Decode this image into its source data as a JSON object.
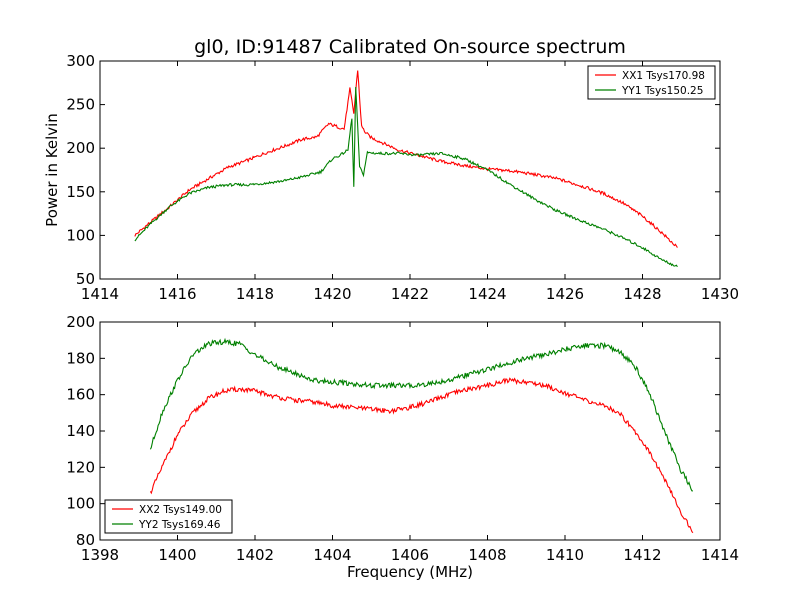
{
  "chart_data": [
    {
      "type": "line",
      "title": "gl0, ID:91487 Calibrated On-source spectrum",
      "xlabel": "",
      "ylabel": "Power in Kelvin",
      "xlim": [
        1414,
        1430
      ],
      "ylim": [
        50,
        300
      ],
      "xticks": [
        1414,
        1416,
        1418,
        1420,
        1422,
        1424,
        1426,
        1428,
        1430
      ],
      "yticks": [
        50,
        100,
        150,
        200,
        250,
        300
      ],
      "legend": "top-right",
      "series": [
        {
          "name": "XX1 Tsys170.98",
          "color": "#ff0000",
          "x": [
            1414.9,
            1415.3,
            1415.8,
            1416.3,
            1416.8,
            1417.3,
            1417.8,
            1418.3,
            1418.8,
            1419.2,
            1419.6,
            1419.9,
            1420.1,
            1420.3,
            1420.45,
            1420.55,
            1420.65,
            1420.75,
            1420.85,
            1421.0,
            1421.3,
            1421.7,
            1422.2,
            1422.8,
            1423.4,
            1424.0,
            1424.6,
            1425.2,
            1425.8,
            1426.4,
            1427.0,
            1427.5,
            1428.0,
            1428.5,
            1428.9
          ],
          "y": [
            100,
            115,
            133,
            152,
            165,
            178,
            186,
            195,
            203,
            210,
            213,
            228,
            225,
            222,
            268,
            240,
            290,
            225,
            218,
            212,
            206,
            198,
            192,
            185,
            180,
            176,
            174,
            170,
            165,
            157,
            148,
            137,
            122,
            103,
            86
          ]
        },
        {
          "name": "YY1 Tsys150.25",
          "color": "#008000",
          "x": [
            1414.9,
            1415.3,
            1415.8,
            1416.3,
            1416.8,
            1417.3,
            1417.8,
            1418.3,
            1418.8,
            1419.3,
            1419.7,
            1420.0,
            1420.2,
            1420.4,
            1420.5,
            1420.55,
            1420.6,
            1420.7,
            1420.8,
            1420.9,
            1421.2,
            1421.7,
            1422.2,
            1422.8,
            1423.4,
            1424.0,
            1424.6,
            1425.2,
            1425.8,
            1426.4,
            1427.0,
            1427.5,
            1428.0,
            1428.5,
            1428.9
          ],
          "y": [
            95,
            113,
            133,
            148,
            155,
            158,
            158,
            160,
            163,
            168,
            173,
            188,
            192,
            198,
            235,
            155,
            270,
            178,
            170,
            195,
            194,
            194,
            192,
            194,
            188,
            175,
            158,
            142,
            128,
            117,
            107,
            97,
            86,
            72,
            64
          ]
        }
      ]
    },
    {
      "type": "line",
      "title": "",
      "xlabel": "Frequency (MHz)",
      "ylabel": "",
      "xlim": [
        1398,
        1414
      ],
      "ylim": [
        80,
        200
      ],
      "xticks": [
        1398,
        1400,
        1402,
        1404,
        1406,
        1408,
        1410,
        1412,
        1414
      ],
      "yticks": [
        80,
        100,
        120,
        140,
        160,
        180,
        200
      ],
      "legend": "bottom-left",
      "series": [
        {
          "name": "XX2 Tsys149.00",
          "color": "#ff0000",
          "x": [
            1399.3,
            1399.6,
            1400.0,
            1400.4,
            1400.8,
            1401.2,
            1401.6,
            1402.0,
            1402.5,
            1403.0,
            1403.5,
            1404.0,
            1404.5,
            1405.0,
            1405.5,
            1406.0,
            1406.5,
            1407.0,
            1407.5,
            1408.0,
            1408.5,
            1409.0,
            1409.5,
            1410.0,
            1410.5,
            1411.0,
            1411.4,
            1411.8,
            1412.2,
            1412.6,
            1413.0,
            1413.3
          ],
          "y": [
            106,
            120,
            138,
            150,
            158,
            162,
            163,
            162,
            159,
            157,
            156,
            154,
            153,
            152,
            151,
            153,
            156,
            160,
            163,
            165,
            168,
            167,
            165,
            161,
            157,
            154,
            150,
            140,
            128,
            112,
            95,
            84
          ]
        },
        {
          "name": "YY2 Tsys169.46",
          "color": "#008000",
          "x": [
            1399.3,
            1399.6,
            1400.0,
            1400.4,
            1400.8,
            1401.2,
            1401.6,
            1402.0,
            1402.5,
            1403.0,
            1403.5,
            1404.0,
            1404.5,
            1405.0,
            1405.5,
            1406.0,
            1406.5,
            1407.0,
            1407.5,
            1408.0,
            1408.5,
            1409.0,
            1409.5,
            1410.0,
            1410.5,
            1411.0,
            1411.4,
            1411.8,
            1412.2,
            1412.6,
            1413.0,
            1413.3
          ],
          "y": [
            130,
            150,
            168,
            182,
            188,
            189,
            188,
            182,
            176,
            172,
            168,
            167,
            166,
            165,
            165,
            165,
            166,
            168,
            171,
            174,
            177,
            180,
            182,
            185,
            187,
            187,
            184,
            176,
            160,
            138,
            118,
            107
          ]
        }
      ]
    }
  ]
}
